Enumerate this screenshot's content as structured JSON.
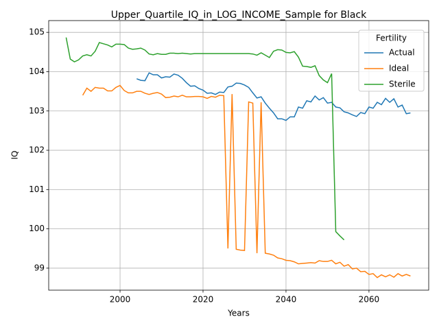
{
  "chart_data": {
    "type": "line",
    "title": "Upper_Quartile_IQ_in_LOG_INCOME_Sample for Black",
    "x_label": "Years",
    "y_label": "IQ",
    "x": [
      1987,
      1988,
      1989,
      1990,
      1991,
      1992,
      1993,
      1994,
      1995,
      1996,
      1997,
      1998,
      1999,
      2000,
      2001,
      2002,
      2003,
      2004,
      2005,
      2006,
      2007,
      2008,
      2009,
      2010,
      2011,
      2012,
      2013,
      2014,
      2015,
      2016,
      2017,
      2018,
      2019,
      2020,
      2021,
      2022,
      2023,
      2024,
      2025,
      2026,
      2027,
      2028,
      2029,
      2030,
      2031,
      2032,
      2033,
      2034,
      2035,
      2036,
      2037,
      2038,
      2039,
      2040,
      2041,
      2042,
      2043,
      2044,
      2045,
      2046,
      2047,
      2048,
      2049,
      2050,
      2051,
      2052,
      2053,
      2054,
      2055,
      2056,
      2057,
      2058,
      2059,
      2060,
      2061,
      2062,
      2063,
      2064,
      2065,
      2066,
      2067,
      2068,
      2069,
      2070
    ],
    "series": [
      {
        "name": "Actual",
        "color": "#1f77b4",
        "values": [
          null,
          null,
          null,
          null,
          null,
          null,
          null,
          null,
          null,
          null,
          null,
          null,
          null,
          null,
          null,
          null,
          null,
          103.82,
          103.78,
          103.77,
          103.97,
          103.92,
          103.92,
          103.84,
          103.87,
          103.86,
          103.94,
          103.91,
          103.83,
          103.72,
          103.63,
          103.64,
          103.57,
          103.53,
          103.45,
          103.46,
          103.42,
          103.48,
          103.47,
          103.61,
          103.63,
          103.71,
          103.7,
          103.66,
          103.6,
          103.46,
          103.33,
          103.36,
          103.2,
          103.07,
          102.95,
          102.8,
          102.8,
          102.76,
          102.85,
          102.85,
          103.1,
          103.07,
          103.26,
          103.23,
          103.38,
          103.28,
          103.34,
          103.2,
          103.22,
          103.1,
          103.08,
          102.98,
          102.95,
          102.9,
          102.86,
          102.96,
          102.93,
          103.1,
          103.07,
          103.22,
          103.16,
          103.32,
          103.22,
          103.31,
          103.1,
          103.15,
          102.93,
          102.95
        ]
      },
      {
        "name": "Ideal",
        "color": "#ff7f0e",
        "values": [
          null,
          null,
          null,
          null,
          103.4,
          103.58,
          103.5,
          103.6,
          103.58,
          103.58,
          103.51,
          103.51,
          103.6,
          103.65,
          103.52,
          103.46,
          103.46,
          103.5,
          103.5,
          103.45,
          103.42,
          103.45,
          103.47,
          103.43,
          103.34,
          103.35,
          103.38,
          103.36,
          103.4,
          103.36,
          103.36,
          103.37,
          103.37,
          103.36,
          103.32,
          103.37,
          103.35,
          103.4,
          103.39,
          99.5,
          103.43,
          99.48,
          99.46,
          99.45,
          103.23,
          103.2,
          99.38,
          103.22,
          99.38,
          99.36,
          99.33,
          99.26,
          99.24,
          99.2,
          99.19,
          99.16,
          99.11,
          99.12,
          99.13,
          99.14,
          99.13,
          99.19,
          99.17,
          99.17,
          99.2,
          99.11,
          99.15,
          99.05,
          99.09,
          98.98,
          99.0,
          98.91,
          98.92,
          98.84,
          98.86,
          98.76,
          98.83,
          98.78,
          98.83,
          98.77,
          98.86,
          98.8,
          98.84,
          98.8
        ]
      },
      {
        "name": "Sterile",
        "color": "#2ca02c",
        "values": [
          104.87,
          104.32,
          104.25,
          104.3,
          104.4,
          104.43,
          104.4,
          104.52,
          104.74,
          104.71,
          104.68,
          104.63,
          104.7,
          104.7,
          104.69,
          104.6,
          104.57,
          104.58,
          104.6,
          104.55,
          104.45,
          104.43,
          104.46,
          104.44,
          104.44,
          104.47,
          104.47,
          104.46,
          104.47,
          104.46,
          104.45,
          104.46,
          104.46,
          104.46,
          104.46,
          104.46,
          104.46,
          104.46,
          104.46,
          104.46,
          104.46,
          104.46,
          104.46,
          104.46,
          104.46,
          104.45,
          104.42,
          104.48,
          104.42,
          104.36,
          104.52,
          104.56,
          104.55,
          104.49,
          104.48,
          104.51,
          104.37,
          104.14,
          104.13,
          104.11,
          104.15,
          103.9,
          103.79,
          103.72,
          103.95,
          99.93,
          99.82,
          99.72,
          null,
          null,
          null,
          null,
          null,
          null,
          null,
          null,
          null,
          null,
          null,
          null,
          null,
          null,
          null,
          null
        ]
      }
    ],
    "legend_title": "Fertility",
    "legend": "upper right",
    "xlim": [
      1982.8,
      2074.4
    ],
    "xticks": [
      2000,
      2020,
      2040,
      2060
    ],
    "ylim": [
      98.44,
      105.3
    ],
    "yticks": [
      99,
      100,
      101,
      102,
      103,
      104,
      105
    ],
    "grid": true
  }
}
